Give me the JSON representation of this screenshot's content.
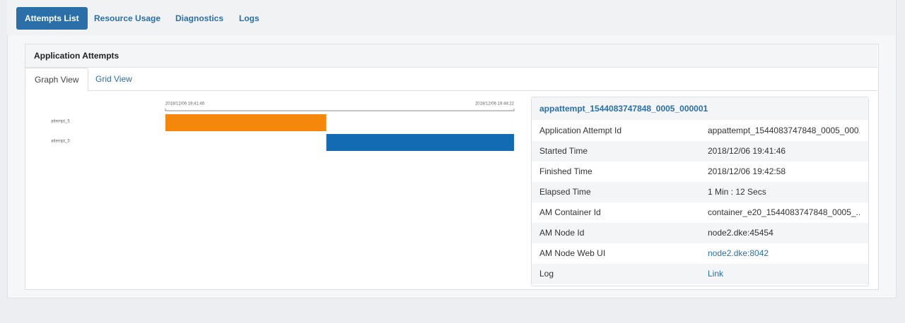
{
  "tabs": [
    "Attempts List",
    "Resource Usage",
    "Diagnostics",
    "Logs"
  ],
  "panel": {
    "title": "Application Attempts",
    "views": [
      "Graph View",
      "Grid View"
    ]
  },
  "timeline": {
    "start_label": "2018/12/06 19:41:46",
    "end_label": "2018/12/06 19:44:22",
    "range": [
      0,
      156
    ],
    "bars": [
      {
        "label": "attempt_5",
        "start": 0,
        "end": 72,
        "color": "#f5870a"
      },
      {
        "label": "attempt_5",
        "start": 72,
        "end": 156,
        "color": "#136cb3"
      }
    ]
  },
  "details": {
    "title": "appattempt_1544083747848_0005_000001",
    "rows": [
      [
        "Application Attempt Id",
        "appattempt_1544083747848_0005_000..."
      ],
      [
        "Started Time",
        "2018/12/06 19:41:46"
      ],
      [
        "Finished Time",
        "2018/12/06 19:42:58"
      ],
      [
        "Elapsed Time",
        "1 Min : 12 Secs"
      ],
      [
        "AM Container Id",
        "container_e20_1544083747848_0005_..."
      ],
      [
        "AM Node Id",
        "node2.dke:45454"
      ],
      [
        "AM Node Web UI",
        "node2.dke:8042"
      ],
      [
        "Log",
        "Link"
      ]
    ]
  }
}
